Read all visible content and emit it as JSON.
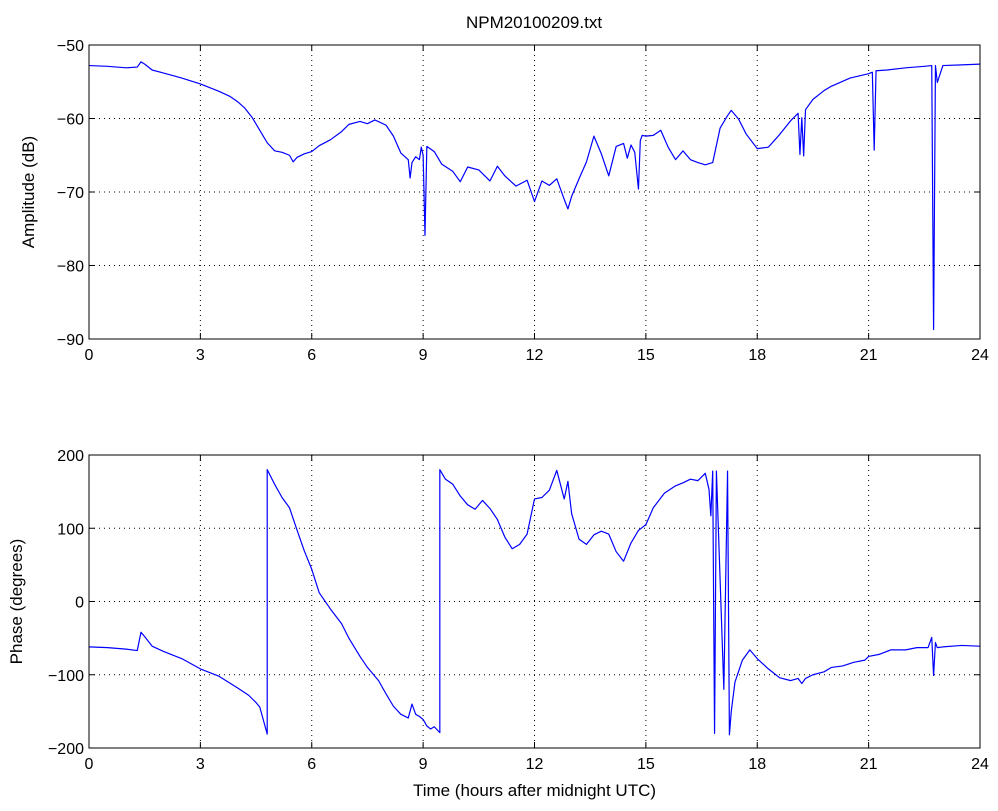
{
  "figure_title": "NPM20100209.txt",
  "colors": {
    "line": "#0000ff",
    "axes": "#000000",
    "background": "#ffffff"
  },
  "chart_data": [
    {
      "type": "line",
      "title": "NPM20100209.txt",
      "xlabel": "",
      "ylabel": "Amplitude (dB)",
      "xlim": [
        0,
        24
      ],
      "ylim": [
        -90,
        -50
      ],
      "xticks": [
        0,
        3,
        6,
        9,
        12,
        15,
        18,
        21,
        24
      ],
      "yticks": [
        -90,
        -80,
        -70,
        -60,
        -50
      ],
      "grid": true,
      "series": [
        {
          "color": "#0000ff",
          "x": [
            0,
            0.5,
            1.0,
            1.3,
            1.4,
            1.5,
            1.7,
            2.0,
            2.5,
            3.0,
            3.5,
            3.8,
            4.0,
            4.2,
            4.4,
            4.6,
            4.8,
            5.0,
            5.2,
            5.4,
            5.5,
            5.6,
            5.8,
            6.0,
            6.2,
            6.5,
            6.8,
            7.0,
            7.3,
            7.5,
            7.7,
            8.0,
            8.2,
            8.4,
            8.6,
            8.65,
            8.7,
            8.8,
            8.9,
            8.95,
            9.0,
            9.05,
            9.1,
            9.3,
            9.5,
            9.8,
            10.0,
            10.2,
            10.5,
            10.8,
            11.0,
            11.2,
            11.5,
            11.8,
            12.0,
            12.2,
            12.4,
            12.6,
            12.8,
            12.9,
            13.0,
            13.2,
            13.4,
            13.6,
            13.8,
            14.0,
            14.2,
            14.4,
            14.5,
            14.6,
            14.7,
            14.8,
            14.85,
            14.9,
            15.0,
            15.2,
            15.4,
            15.6,
            15.8,
            16.0,
            16.2,
            16.4,
            16.6,
            16.8,
            17.0,
            17.2,
            17.3,
            17.5,
            17.7,
            18.0,
            18.3,
            18.6,
            18.9,
            19.1,
            19.15,
            19.2,
            19.25,
            19.3,
            19.5,
            19.8,
            20.0,
            20.5,
            21.0,
            21.1,
            21.15,
            21.2,
            21.5,
            22.0,
            22.5,
            22.7,
            22.75,
            22.8,
            22.85,
            23.0,
            23.5,
            24.0
          ],
          "y": [
            -52.8,
            -52.9,
            -53.1,
            -53.0,
            -52.3,
            -52.6,
            -53.4,
            -53.8,
            -54.5,
            -55.3,
            -56.3,
            -57.0,
            -57.7,
            -58.6,
            -59.9,
            -61.6,
            -63.3,
            -64.4,
            -64.6,
            -65.0,
            -65.9,
            -65.3,
            -64.8,
            -64.5,
            -63.7,
            -62.9,
            -61.8,
            -60.8,
            -60.4,
            -60.7,
            -60.2,
            -60.9,
            -62.4,
            -64.7,
            -65.6,
            -68.1,
            -66.0,
            -65.2,
            -65.6,
            -63.9,
            -65.0,
            -75.9,
            -63.8,
            -64.5,
            -66.2,
            -67.2,
            -68.6,
            -66.6,
            -67.0,
            -68.5,
            -66.5,
            -67.8,
            -69.2,
            -68.4,
            -71.3,
            -68.5,
            -69.1,
            -68.2,
            -71.0,
            -72.3,
            -70.6,
            -68.2,
            -65.9,
            -62.4,
            -64.8,
            -67.8,
            -63.8,
            -63.4,
            -65.4,
            -63.6,
            -64.6,
            -69.6,
            -63.0,
            -62.3,
            -62.4,
            -62.3,
            -61.6,
            -63.9,
            -65.6,
            -64.4,
            -65.6,
            -66.0,
            -66.3,
            -66.0,
            -61.3,
            -59.6,
            -58.9,
            -60.1,
            -62.1,
            -64.1,
            -63.9,
            -62.2,
            -60.3,
            -59.3,
            -64.9,
            -59.9,
            -65.1,
            -58.8,
            -57.4,
            -56.2,
            -55.6,
            -54.5,
            -53.9,
            -53.7,
            -64.3,
            -53.5,
            -53.4,
            -53.1,
            -52.9,
            -52.8,
            -88.7,
            -52.8,
            -55.1,
            -52.8,
            -52.7,
            -52.6
          ]
        }
      ]
    },
    {
      "type": "line",
      "title": "",
      "xlabel": "Time (hours after midnight UTC)",
      "ylabel": "Phase (degrees)",
      "xlim": [
        0,
        24
      ],
      "ylim": [
        -200,
        200
      ],
      "xticks": [
        0,
        3,
        6,
        9,
        12,
        15,
        18,
        21,
        24
      ],
      "yticks": [
        -200,
        -100,
        0,
        100,
        200
      ],
      "grid": true,
      "series": [
        {
          "color": "#0000ff",
          "x": [
            0,
            0.5,
            1.0,
            1.3,
            1.4,
            1.5,
            1.7,
            2.0,
            2.5,
            3.0,
            3.5,
            4.0,
            4.3,
            4.5,
            4.6,
            4.8,
            4.8,
            5.0,
            5.2,
            5.4,
            5.6,
            5.8,
            6.0,
            6.2,
            6.5,
            6.8,
            7.0,
            7.3,
            7.5,
            7.8,
            8.0,
            8.2,
            8.4,
            8.6,
            8.7,
            8.8,
            8.9,
            9.0,
            9.1,
            9.2,
            9.3,
            9.45,
            9.45,
            9.6,
            9.8,
            10.0,
            10.2,
            10.4,
            10.6,
            10.8,
            11.0,
            11.2,
            11.4,
            11.6,
            11.8,
            12.0,
            12.2,
            12.4,
            12.6,
            12.8,
            12.9,
            13.0,
            13.2,
            13.4,
            13.6,
            13.8,
            14.0,
            14.2,
            14.4,
            14.6,
            14.8,
            15.0,
            15.2,
            15.5,
            15.8,
            16.0,
            16.2,
            16.4,
            16.6,
            16.7,
            16.75,
            16.8,
            16.85,
            16.9,
            17.1,
            17.2,
            17.25,
            17.3,
            17.4,
            17.6,
            17.8,
            18.0,
            18.3,
            18.6,
            18.9,
            19.1,
            19.2,
            19.3,
            19.5,
            19.8,
            20.0,
            20.3,
            20.6,
            20.9,
            21.0,
            21.3,
            21.6,
            22.0,
            22.3,
            22.6,
            22.7,
            22.75,
            22.8,
            22.85,
            23.0,
            23.5,
            24.0
          ],
          "y": [
            -62,
            -63,
            -65,
            -67,
            -42,
            -48,
            -61,
            -68,
            -78,
            -92,
            -102,
            -118,
            -128,
            -138,
            -144,
            -181,
            180,
            160,
            142,
            128,
            98,
            69,
            44,
            12,
            -10,
            -30,
            -50,
            -75,
            -90,
            -108,
            -126,
            -143,
            -154,
            -159,
            -140,
            -154,
            -157,
            -161,
            -170,
            -174,
            -171,
            -179,
            180,
            167,
            160,
            144,
            132,
            126,
            138,
            127,
            112,
            88,
            72,
            78,
            92,
            140,
            142,
            152,
            179,
            140,
            164,
            120,
            85,
            78,
            91,
            96,
            92,
            68,
            55,
            80,
            97,
            105,
            128,
            148,
            158,
            162,
            167,
            165,
            175,
            153,
            117,
            178,
            -180,
            178,
            -120,
            178,
            -182,
            -150,
            -110,
            -80,
            -66,
            -78,
            -92,
            -104,
            -108,
            -105,
            -112,
            -105,
            -100,
            -96,
            -90,
            -88,
            -83,
            -80,
            -75,
            -72,
            -66,
            -66,
            -63,
            -63,
            -49,
            -101,
            -56,
            -63,
            -62,
            -60,
            -61
          ]
        }
      ]
    }
  ]
}
